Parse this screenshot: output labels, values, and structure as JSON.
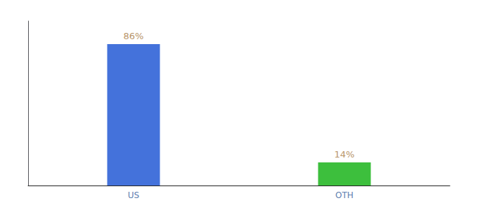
{
  "chart_data": {
    "type": "bar",
    "categories": [
      "US",
      "OTH"
    ],
    "values": [
      86,
      14
    ],
    "value_labels": [
      "86%",
      "14%"
    ],
    "colors": [
      "#4472db",
      "#3dbf3d"
    ],
    "ylim": [
      0,
      100
    ],
    "grid": false,
    "data_labels": true,
    "tick_labels": "x"
  }
}
